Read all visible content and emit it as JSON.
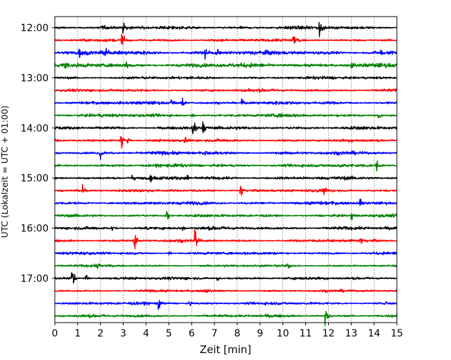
{
  "chart_data": {
    "type": "line",
    "title": "",
    "xlabel": "Zeit  [min]",
    "ylabel": "UTC (Lokalzeit = UTC + 01:00)",
    "xlim": [
      0,
      15
    ],
    "x_ticks": [
      "0",
      "1",
      "2",
      "3",
      "4",
      "5",
      "6",
      "7",
      "8",
      "9",
      "10",
      "11",
      "12",
      "13",
      "14",
      "15"
    ],
    "y_ticks": [
      "12:00",
      "13:00",
      "14:00",
      "15:00",
      "16:00",
      "17:00"
    ],
    "grid": "vertical dotted at each minute",
    "legend": "none",
    "colors": [
      "#000000",
      "#ff0000",
      "#0000ff",
      "#008000"
    ],
    "series": [
      {
        "start": "12:00",
        "amplitude": 0.35,
        "events": [
          [
            3.0,
            2.4
          ],
          [
            11.6,
            3.2
          ],
          [
            2.1,
            1.2
          ]
        ]
      },
      {
        "start": "12:15",
        "amplitude": 0.3,
        "events": [
          [
            2.95,
            3.0
          ],
          [
            10.45,
            3.2
          ]
        ]
      },
      {
        "start": "12:30",
        "amplitude": 0.45,
        "events": [
          [
            1.05,
            2.0
          ],
          [
            2.2,
            2.2
          ],
          [
            6.6,
            3.4
          ],
          [
            7.1,
            2.0
          ],
          [
            14.3,
            1.2
          ]
        ]
      },
      {
        "start": "12:45",
        "amplitude": 0.45,
        "events": [
          [
            0.4,
            2.2
          ],
          [
            3.15,
            2.2
          ],
          [
            13.0,
            1.2
          ]
        ]
      },
      {
        "start": "13:00",
        "amplitude": 0.3,
        "events": []
      },
      {
        "start": "13:15",
        "amplitude": 0.3,
        "events": [
          [
            8.5,
            1.0
          ]
        ]
      },
      {
        "start": "13:30",
        "amplitude": 0.35,
        "events": [
          [
            5.1,
            1.8
          ],
          [
            5.6,
            2.2
          ],
          [
            8.2,
            1.2
          ]
        ]
      },
      {
        "start": "13:45",
        "amplitude": 0.35,
        "events": [
          [
            6.0,
            1.6
          ],
          [
            14.2,
            1.0
          ]
        ]
      },
      {
        "start": "14:00",
        "amplitude": 0.35,
        "events": [
          [
            6.05,
            2.6
          ],
          [
            6.5,
            2.6
          ],
          [
            6.15,
            2.0
          ]
        ]
      },
      {
        "start": "14:15",
        "amplitude": 0.3,
        "events": [
          [
            2.9,
            4.0
          ],
          [
            3.2,
            1.4
          ],
          [
            5.7,
            1.4
          ]
        ]
      },
      {
        "start": "14:30",
        "amplitude": 0.35,
        "events": [
          [
            2.0,
            2.0
          ],
          [
            6.6,
            1.2
          ]
        ]
      },
      {
        "start": "14:45",
        "amplitude": 0.35,
        "events": [
          [
            14.1,
            2.0
          ],
          [
            12.4,
            1.0
          ]
        ]
      },
      {
        "start": "15:00",
        "amplitude": 0.35,
        "events": [
          [
            3.4,
            1.6
          ],
          [
            4.2,
            1.2
          ],
          [
            5.8,
            1.4
          ]
        ]
      },
      {
        "start": "15:15",
        "amplitude": 0.3,
        "events": [
          [
            1.2,
            2.2
          ],
          [
            8.15,
            3.0
          ],
          [
            11.8,
            1.2
          ]
        ]
      },
      {
        "start": "15:30",
        "amplitude": 0.35,
        "events": [
          [
            13.4,
            2.0
          ],
          [
            4.5,
            1.0
          ]
        ]
      },
      {
        "start": "15:45",
        "amplitude": 0.3,
        "events": [
          [
            4.9,
            2.8
          ],
          [
            13.0,
            1.4
          ]
        ]
      },
      {
        "start": "16:00",
        "amplitude": 0.35,
        "events": [
          [
            4.0,
            1.6
          ],
          [
            2.5,
            1.4
          ],
          [
            5.6,
            1.2
          ]
        ]
      },
      {
        "start": "16:15",
        "amplitude": 0.3,
        "events": [
          [
            3.5,
            3.0
          ],
          [
            6.15,
            3.6
          ],
          [
            13.4,
            1.6
          ]
        ]
      },
      {
        "start": "16:30",
        "amplitude": 0.3,
        "events": [
          [
            5.0,
            1.0
          ]
        ]
      },
      {
        "start": "16:45",
        "amplitude": 0.25,
        "events": [
          [
            1.85,
            1.8
          ],
          [
            10.2,
            1.0
          ]
        ]
      },
      {
        "start": "17:00",
        "amplitude": 0.3,
        "events": [
          [
            0.75,
            4.0
          ],
          [
            1.35,
            2.0
          ],
          [
            7.1,
            1.6
          ]
        ]
      },
      {
        "start": "17:15",
        "amplitude": 0.25,
        "events": [
          [
            6.6,
            1.0
          ]
        ]
      },
      {
        "start": "17:30",
        "amplitude": 0.3,
        "events": [
          [
            4.55,
            2.8
          ],
          [
            5.9,
            1.4
          ],
          [
            14.5,
            1.2
          ]
        ]
      },
      {
        "start": "17:45",
        "amplitude": 0.3,
        "events": [
          [
            11.85,
            4.0
          ]
        ]
      }
    ]
  }
}
